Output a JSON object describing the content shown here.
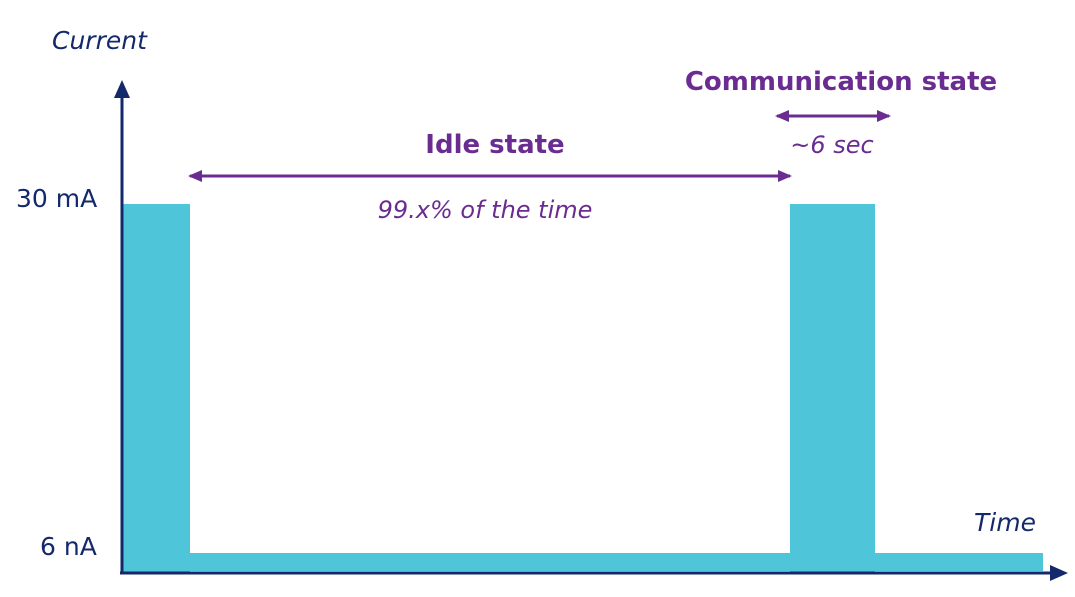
{
  "axes": {
    "y_title": "Current",
    "x_title": "Time",
    "y_high_label": "30 mA",
    "y_low_label": "6 nA"
  },
  "idle": {
    "title": "Idle state",
    "note": "99.x% of the time"
  },
  "communication": {
    "title": "Communication state",
    "note": "~6 sec"
  },
  "colors": {
    "axis": "#13296b",
    "accent": "#6a2c91",
    "bar": "#4fc5da",
    "text_dark": "#13296b"
  },
  "icons": {
    "y_arrow": "arrow-up-icon",
    "x_arrow": "arrow-right-icon",
    "span_arrow": "double-arrow-icon"
  }
}
